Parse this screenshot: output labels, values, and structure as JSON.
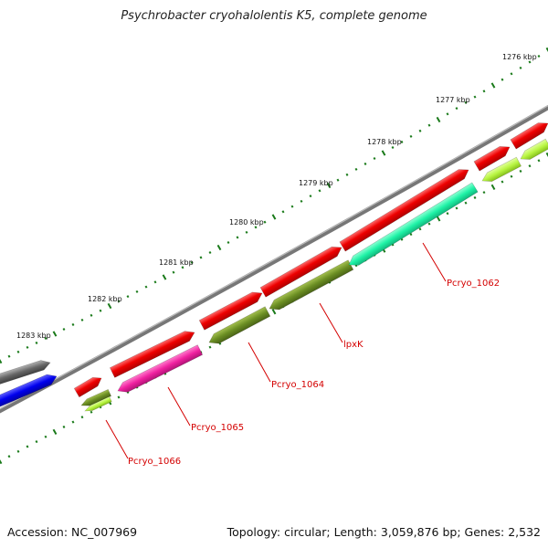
{
  "title": "Psychrobacter cryohalolentis K5, complete genome",
  "accession_text": "Accession: NC_007969",
  "summary_text": "Topology: circular; Length: 3,059,876 bp; Genes: 2,532",
  "kbp_labels": [
    "1276 kbp",
    "1277 kbp",
    "1278 kbp",
    "1279 kbp",
    "1280 kbp",
    "1281 kbp",
    "1282 kbp",
    "1283 kbp"
  ],
  "gene_labels": [
    "Pcryo_1062",
    "lpxK",
    "Pcryo_1064",
    "Pcryo_1065",
    "Pcryo_1066"
  ],
  "colors": {
    "forward_cds": "#ee0000",
    "gene_green": "#6b8e23",
    "gene_aqua": "#1ef2a6",
    "gene_magenta": "#f020a0",
    "gene_lime": "#b8f542",
    "gene_blue": "#0000ee",
    "gene_gray": "#666666",
    "backbone": "#777777",
    "ticks": "#1a7a1a",
    "labels": "#d40000"
  }
}
